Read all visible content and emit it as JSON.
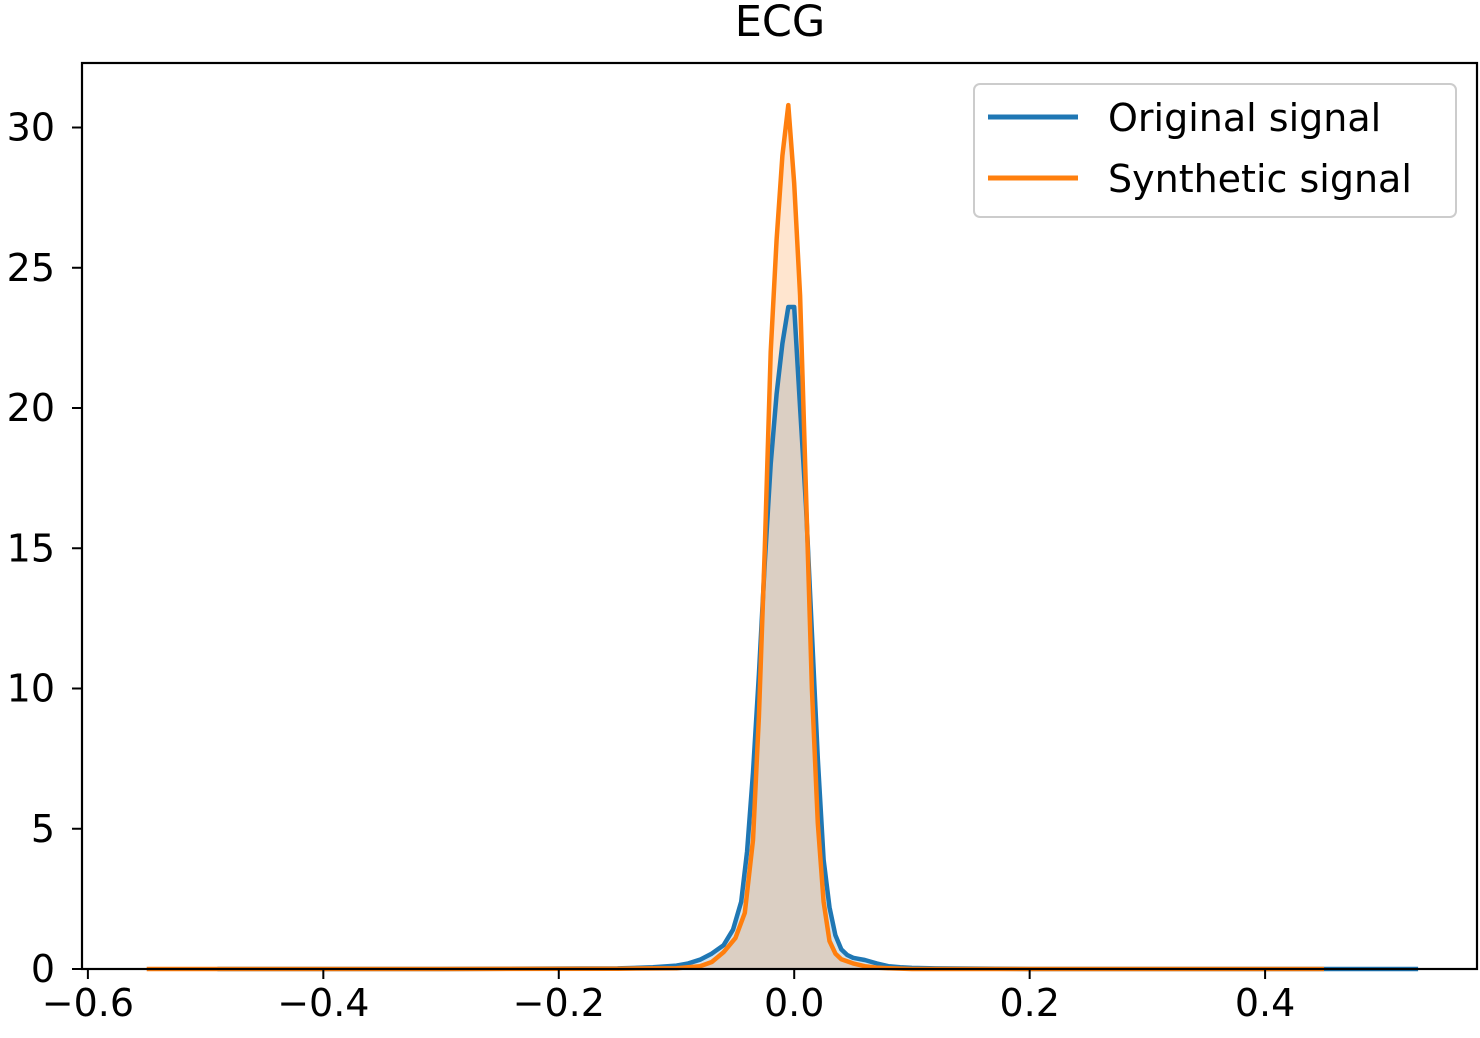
{
  "chart_data": {
    "type": "area",
    "title": "ECG",
    "xlabel": "",
    "ylabel": "",
    "xlim": [
      -0.605,
      0.58
    ],
    "ylim": [
      0,
      32.3
    ],
    "xticks": [
      -0.6,
      -0.4,
      -0.2,
      0.0,
      0.2,
      0.4
    ],
    "xtick_labels": [
      "−0.6",
      "−0.4",
      "−0.2",
      "0.0",
      "0.2",
      "0.4"
    ],
    "yticks": [
      0,
      5,
      10,
      15,
      20,
      25,
      30
    ],
    "ytick_labels": [
      "0",
      "5",
      "10",
      "15",
      "20",
      "25",
      "30"
    ],
    "grid": false,
    "legend_position": "upper-right",
    "series": [
      {
        "name": "Original signal",
        "color": "#1f77b4",
        "fill_color": "#1f77b4",
        "x": [
          -0.49,
          -0.3,
          -0.15,
          -0.12,
          -0.1,
          -0.09,
          -0.08,
          -0.07,
          -0.06,
          -0.052,
          -0.045,
          -0.04,
          -0.035,
          -0.03,
          -0.025,
          -0.02,
          -0.015,
          -0.01,
          -0.005,
          0.0,
          0.005,
          0.01,
          0.015,
          0.02,
          0.025,
          0.03,
          0.035,
          0.04,
          0.045,
          0.05,
          0.055,
          0.06,
          0.07,
          0.08,
          0.09,
          0.1,
          0.12,
          0.2,
          0.3,
          0.45,
          0.53
        ],
        "y": [
          0.0,
          0.0,
          0.02,
          0.06,
          0.12,
          0.2,
          0.33,
          0.55,
          0.85,
          1.4,
          2.4,
          4.2,
          7.0,
          10.5,
          14.5,
          18.0,
          20.5,
          22.3,
          23.6,
          23.6,
          20.0,
          16.5,
          12.0,
          7.5,
          3.9,
          2.2,
          1.2,
          0.7,
          0.5,
          0.4,
          0.36,
          0.32,
          0.2,
          0.1,
          0.06,
          0.04,
          0.02,
          0.0,
          0.0,
          0.0,
          0.0
        ]
      },
      {
        "name": "Synthetic signal",
        "color": "#ff7f0e",
        "fill_color": "#ff7f0e",
        "x": [
          -0.55,
          -0.3,
          -0.15,
          -0.1,
          -0.08,
          -0.07,
          -0.06,
          -0.05,
          -0.042,
          -0.035,
          -0.03,
          -0.025,
          -0.02,
          -0.015,
          -0.01,
          -0.005,
          0.0,
          0.005,
          0.01,
          0.015,
          0.02,
          0.025,
          0.03,
          0.035,
          0.04,
          0.05,
          0.06,
          0.07,
          0.08,
          0.1,
          0.2,
          0.45
        ],
        "y": [
          0.0,
          0.0,
          0.01,
          0.03,
          0.1,
          0.25,
          0.6,
          1.1,
          2.0,
          4.6,
          9.0,
          15.0,
          22.0,
          26.0,
          29.0,
          30.8,
          28.0,
          24.0,
          17.0,
          10.0,
          5.2,
          2.4,
          1.0,
          0.55,
          0.35,
          0.2,
          0.1,
          0.05,
          0.03,
          0.0,
          0.0,
          0.0
        ]
      }
    ]
  }
}
